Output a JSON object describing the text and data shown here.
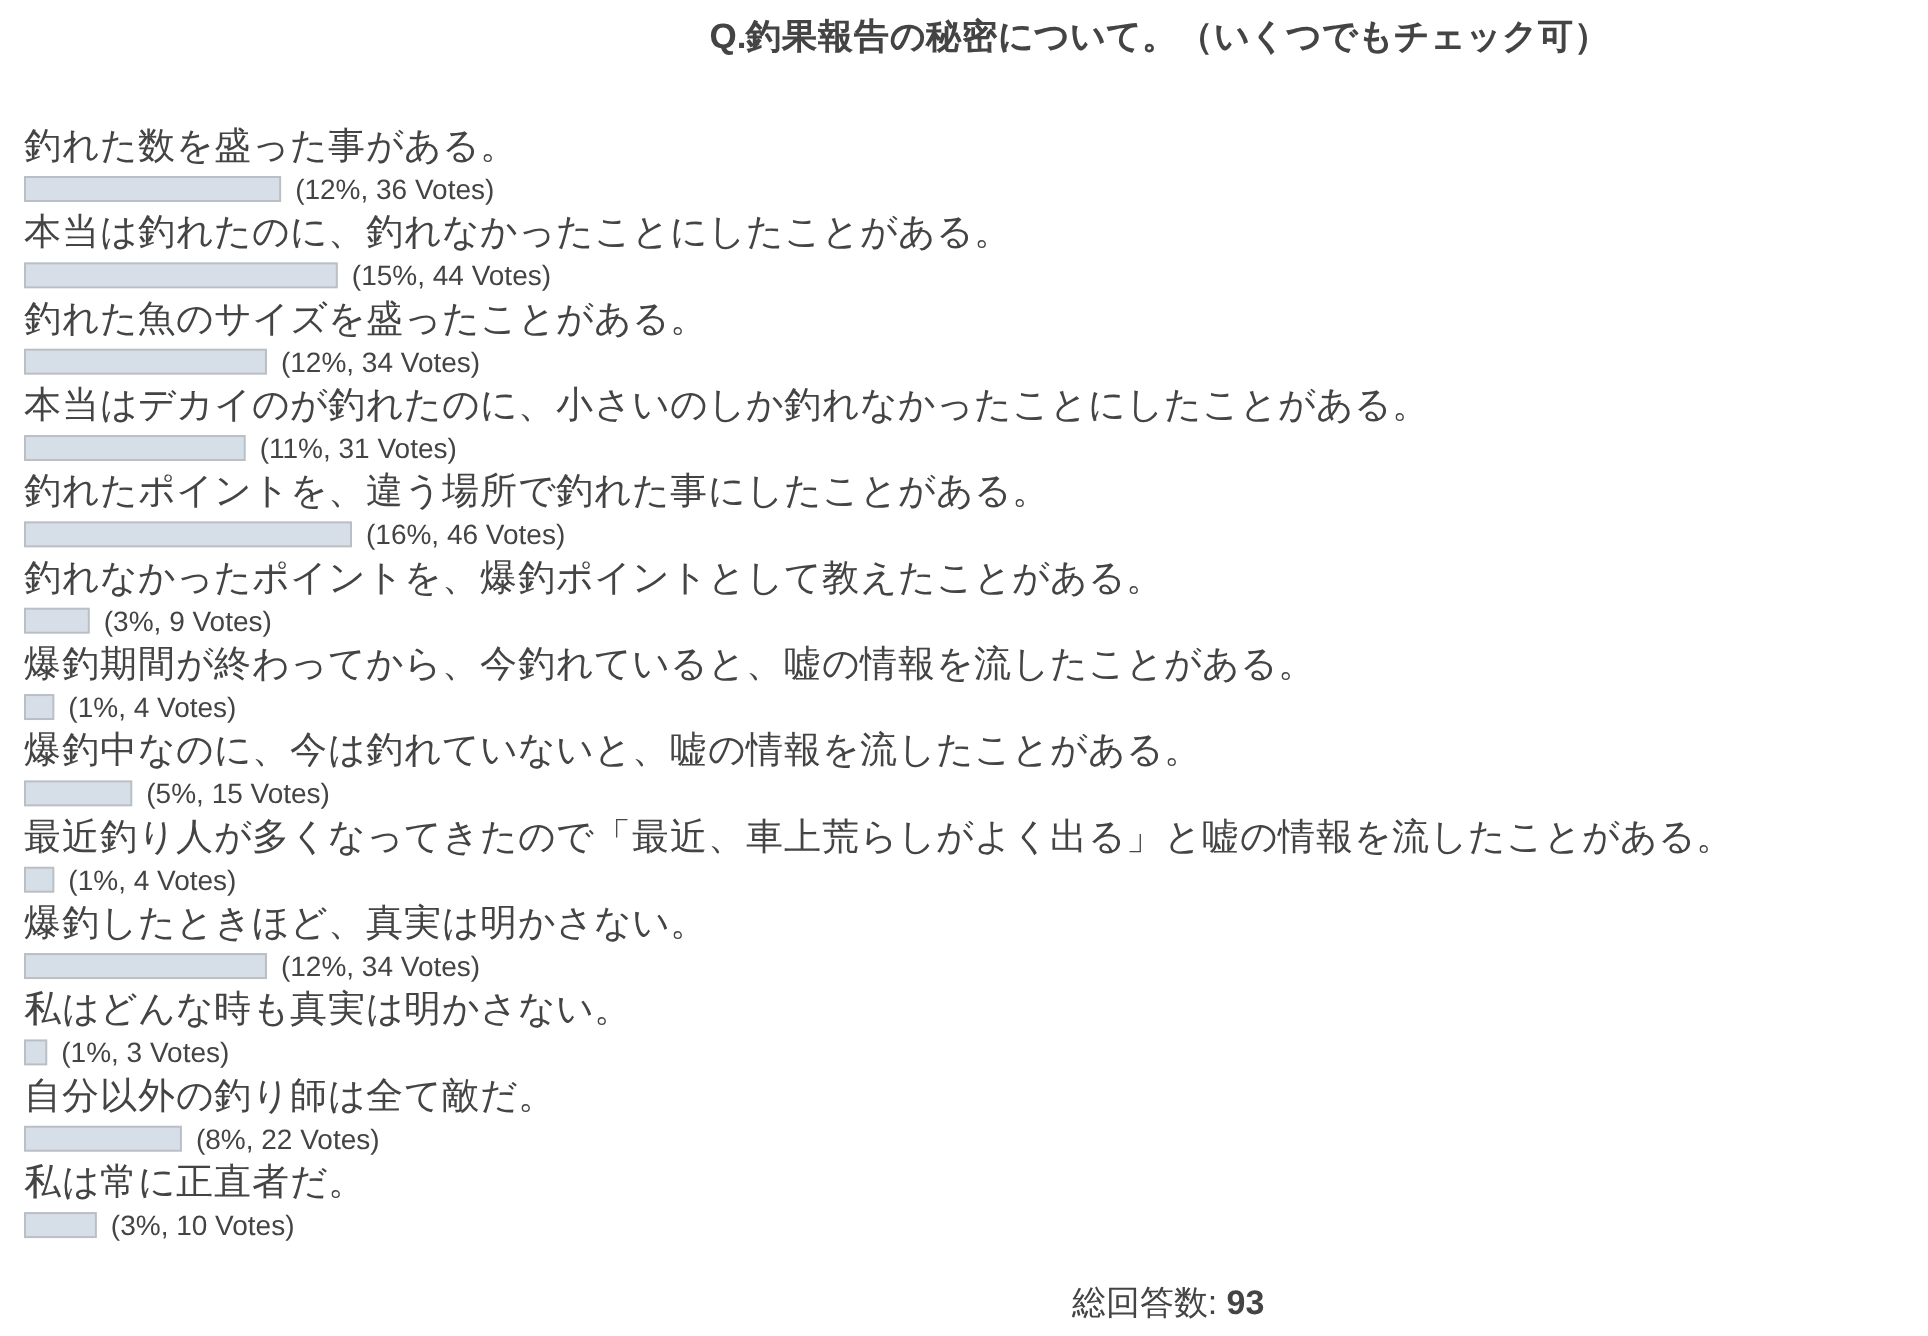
{
  "chart_data": {
    "type": "bar",
    "orientation": "horizontal",
    "title": "Q.釣果報告の秘密について。（いくつでもチェック可）",
    "categories": [
      "釣れた数を盛った事がある。",
      "本当は釣れたのに、釣れなかったことにしたことがある。",
      "釣れた魚のサイズを盛ったことがある。",
      "本当はデカイのが釣れたのに、小さいのしか釣れなかったことにしたことがある。",
      "釣れたポイントを、違う場所で釣れた事にしたことがある。",
      "釣れなかったポイントを、爆釣ポイントとして教えたことがある。",
      "爆釣期間が終わってから、今釣れていると、嘘の情報を流したことがある。",
      "爆釣中なのに、今は釣れていないと、嘘の情報を流したことがある。",
      "最近釣り人が多くなってきたので「最近、車上荒らしがよく出る」と嘘の情報を流したことがある。",
      "爆釣したときほど、真実は明かさない。",
      "私はどんな時も真実は明かさない。",
      "自分以外の釣り師は全て敵だ。",
      "私は常に正直者だ。"
    ],
    "values": [
      36,
      44,
      34,
      31,
      46,
      9,
      4,
      15,
      4,
      34,
      3,
      22,
      10
    ],
    "value_labels": [
      "(12%, 36 Votes)",
      "(15%, 44 Votes)",
      "(12%, 34 Votes)",
      "(11%, 31 Votes)",
      "(16%, 46 Votes)",
      "(3%, 9 Votes)",
      "(1%, 4 Votes)",
      "(5%, 15 Votes)",
      "(1%, 4 Votes)",
      "(12%, 34 Votes)",
      "(1%, 3 Votes)",
      "(8%, 22 Votes)",
      "(3%, 10 Votes)"
    ],
    "color": "#d6dee7",
    "annotations": [
      "総回答数: 93"
    ]
  }
}
